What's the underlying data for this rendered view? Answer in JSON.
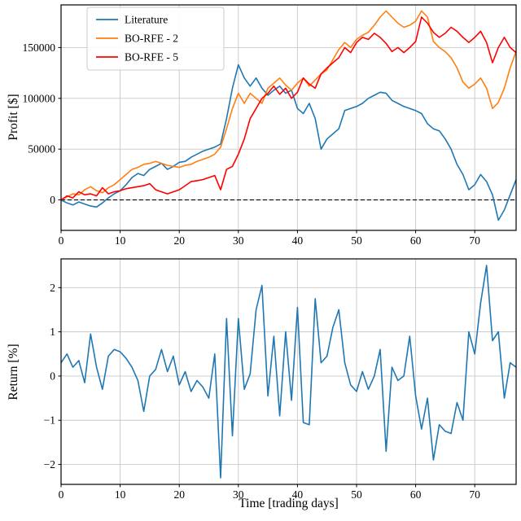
{
  "colors": {
    "blue": "#1f77b4",
    "orange": "#ff7f0e",
    "red": "#ff0000",
    "grid": "#c8c8c8",
    "spine": "#000000",
    "legend_edge": "#cccccc",
    "zero_line": "#000000"
  },
  "chart_data": [
    {
      "type": "line",
      "name": "profit",
      "title": "",
      "xlabel": "",
      "ylabel": "Profit [$]",
      "xlim": [
        0,
        77
      ],
      "ylim": [
        -30000,
        192000
      ],
      "xticks": [
        0,
        10,
        20,
        30,
        40,
        50,
        60,
        70
      ],
      "yticks": [
        0,
        50000,
        100000,
        150000
      ],
      "ytick_labels": [
        "0",
        "50000",
        "100000",
        "150000"
      ],
      "grid": true,
      "zero_line": true,
      "legend": {
        "position": "upper-left",
        "frame": true
      },
      "series": [
        {
          "name": "Literature",
          "color": "#1f77b4",
          "values": [
            0,
            -3000,
            -5000,
            -2000,
            -4000,
            -6000,
            -7000,
            -3000,
            2000,
            6000,
            9000,
            15000,
            22000,
            26000,
            24000,
            30000,
            33000,
            36000,
            30000,
            33000,
            37000,
            38000,
            42000,
            45000,
            48000,
            50000,
            52000,
            55000,
            80000,
            110000,
            133000,
            120000,
            112000,
            120000,
            110000,
            103000,
            108000,
            112000,
            105000,
            108000,
            90000,
            85000,
            95000,
            80000,
            50000,
            60000,
            65000,
            70000,
            88000,
            90000,
            92000,
            95000,
            100000,
            103000,
            106000,
            105000,
            98000,
            95000,
            92000,
            90000,
            88000,
            85000,
            75000,
            70000,
            68000,
            60000,
            50000,
            35000,
            25000,
            10000,
            15000,
            25000,
            18000,
            5000,
            -20000,
            -10000,
            5000,
            20000
          ]
        },
        {
          "name": "BO-RFE - 2",
          "color": "#ff7f0e",
          "values": [
            0,
            3000,
            6000,
            5000,
            10000,
            13000,
            9000,
            7000,
            12000,
            15000,
            20000,
            25000,
            30000,
            32000,
            35000,
            36000,
            38000,
            36000,
            34000,
            33000,
            32000,
            34000,
            35000,
            38000,
            40000,
            42000,
            45000,
            52000,
            70000,
            90000,
            105000,
            95000,
            105000,
            100000,
            95000,
            110000,
            115000,
            120000,
            113000,
            108000,
            115000,
            120000,
            112000,
            118000,
            124000,
            128000,
            138000,
            148000,
            155000,
            150000,
            158000,
            162000,
            165000,
            172000,
            180000,
            186000,
            180000,
            174000,
            170000,
            172000,
            176000,
            186000,
            180000,
            156000,
            150000,
            146000,
            140000,
            130000,
            116000,
            110000,
            114000,
            120000,
            110000,
            90000,
            96000,
            110000,
            130000,
            146000
          ]
        },
        {
          "name": "BO-RFE - 5",
          "color": "#ff0000",
          "values": [
            0,
            4000,
            2000,
            8000,
            5000,
            6000,
            4000,
            12000,
            6000,
            8000,
            9000,
            11000,
            12000,
            13000,
            14000,
            16000,
            10000,
            8000,
            6000,
            8000,
            10000,
            14000,
            18000,
            19000,
            20000,
            22000,
            24000,
            10000,
            30000,
            33000,
            45000,
            60000,
            80000,
            90000,
            100000,
            105000,
            112000,
            104000,
            110000,
            100000,
            106000,
            120000,
            114000,
            110000,
            124000,
            130000,
            135000,
            140000,
            150000,
            145000,
            155000,
            160000,
            158000,
            164000,
            160000,
            154000,
            146000,
            150000,
            145000,
            150000,
            156000,
            180000,
            174000,
            165000,
            160000,
            164000,
            170000,
            166000,
            160000,
            155000,
            160000,
            166000,
            155000,
            135000,
            150000,
            160000,
            150000,
            145000
          ]
        }
      ]
    },
    {
      "type": "line",
      "name": "return",
      "title": "",
      "xlabel": "Time [trading days]",
      "ylabel": "Return [%]",
      "xlim": [
        0,
        77
      ],
      "ylim": [
        -2.45,
        2.65
      ],
      "xticks": [
        0,
        10,
        20,
        30,
        40,
        50,
        60,
        70
      ],
      "yticks": [
        -2,
        -1,
        0,
        1,
        2
      ],
      "ytick_labels": [
        "−2",
        "−1",
        "0",
        "1",
        "2"
      ],
      "grid": true,
      "zero_line": false,
      "legend": null,
      "series": [
        {
          "name": "Return",
          "color": "#1f77b4",
          "values": [
            0.3,
            0.5,
            0.2,
            0.35,
            -0.15,
            0.95,
            0.2,
            -0.3,
            0.45,
            0.6,
            0.55,
            0.4,
            0.2,
            -0.1,
            -0.8,
            0.0,
            0.15,
            0.6,
            0.1,
            0.45,
            -0.2,
            0.1,
            -0.35,
            -0.1,
            -0.25,
            -0.5,
            0.5,
            -2.3,
            1.3,
            -1.35,
            1.3,
            -0.3,
            0.05,
            1.5,
            2.05,
            -0.45,
            0.9,
            -0.9,
            1.0,
            -0.55,
            1.55,
            -1.05,
            -1.1,
            1.75,
            0.3,
            0.45,
            1.1,
            1.5,
            0.3,
            -0.2,
            -0.35,
            0.1,
            -0.3,
            0.0,
            0.6,
            -1.7,
            0.2,
            -0.1,
            0.0,
            0.9,
            -0.45,
            -1.2,
            -0.5,
            -1.9,
            -1.1,
            -1.25,
            -1.3,
            -0.6,
            -1.0,
            1.0,
            0.5,
            1.65,
            2.5,
            0.8,
            1.0,
            -0.5,
            0.3,
            0.2
          ]
        }
      ]
    }
  ]
}
